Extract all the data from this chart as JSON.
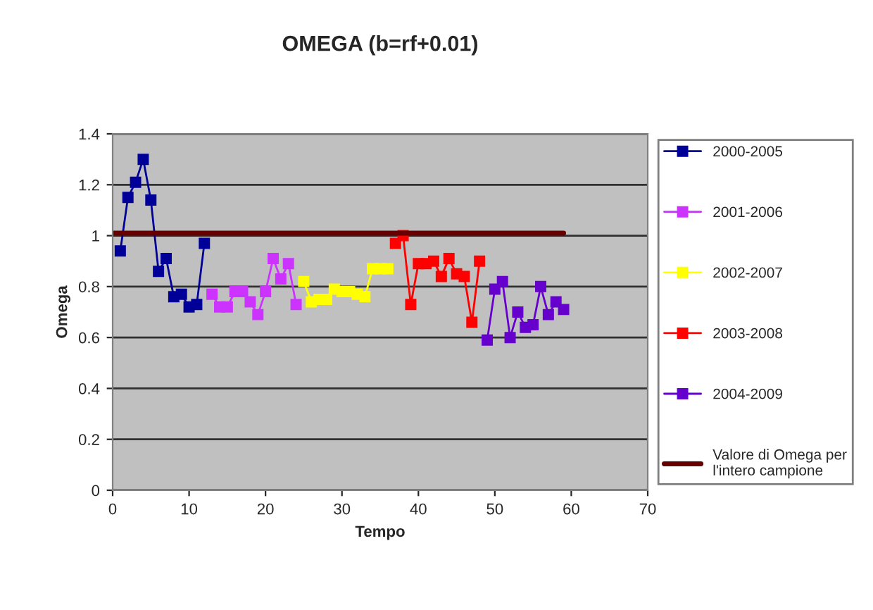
{
  "chart_data": {
    "type": "line",
    "title": "OMEGA (b=rf+0.01)",
    "xlabel": "Tempo",
    "ylabel": "Omega",
    "xlim": [
      0,
      70
    ],
    "xticks": [
      0,
      10,
      20,
      30,
      40,
      50,
      60,
      70
    ],
    "ylim": [
      0,
      1.4
    ],
    "yticks": [
      0,
      0.2,
      0.4,
      0.6,
      0.8,
      1,
      1.2,
      1.4
    ],
    "grid": "y",
    "legend": "right",
    "marker": "square",
    "series": [
      {
        "name": "2000-2005",
        "color": "#000099",
        "x": [
          1,
          2,
          3,
          4,
          5,
          6,
          7,
          8,
          9,
          10,
          11,
          12
        ],
        "values": [
          0.94,
          1.15,
          1.21,
          1.3,
          1.14,
          0.86,
          0.91,
          0.76,
          0.77,
          0.72,
          0.73,
          0.97
        ]
      },
      {
        "name": "2001-2006",
        "color": "#cc33ff",
        "x": [
          13,
          14,
          15,
          16,
          17,
          18,
          19,
          20,
          21,
          22,
          23,
          24
        ],
        "values": [
          0.77,
          0.72,
          0.72,
          0.78,
          0.78,
          0.74,
          0.69,
          0.78,
          0.91,
          0.83,
          0.89,
          0.73
        ]
      },
      {
        "name": "2002-2007",
        "color": "#ffff00",
        "x": [
          25,
          26,
          27,
          28,
          29,
          30,
          31,
          32,
          33,
          34,
          35,
          36
        ],
        "values": [
          0.82,
          0.74,
          0.75,
          0.75,
          0.79,
          0.78,
          0.78,
          0.77,
          0.76,
          0.87,
          0.87,
          0.87
        ]
      },
      {
        "name": "2003-2008",
        "color": "#ff0000",
        "x": [
          37,
          38,
          39,
          40,
          41,
          42,
          43,
          44,
          45,
          46,
          47,
          48
        ],
        "values": [
          0.97,
          1.0,
          0.73,
          0.89,
          0.89,
          0.9,
          0.84,
          0.91,
          0.85,
          0.84,
          0.66,
          0.9
        ]
      },
      {
        "name": "2004-2009",
        "color": "#6600cc",
        "x": [
          49,
          50,
          51,
          52,
          53,
          54,
          55,
          56,
          57,
          58,
          59
        ],
        "values": [
          0.59,
          0.79,
          0.82,
          0.6,
          0.7,
          0.64,
          0.65,
          0.8,
          0.69,
          0.74,
          0.71
        ]
      },
      {
        "name": "Valore di Omega per l'intero campione",
        "color": "#660000",
        "marker": "none",
        "x": [
          0,
          59
        ],
        "values": [
          1.01,
          1.01
        ]
      }
    ]
  }
}
